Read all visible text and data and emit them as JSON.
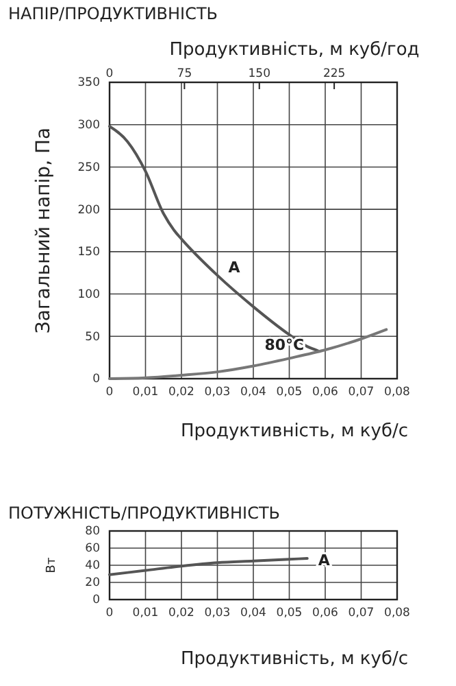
{
  "chart_data": [
    {
      "type": "line",
      "title": "НАПІР/ПРОДУКТИВНІСТЬ",
      "xlabel": "Продуктивність, м куб/с",
      "ylabel": "Загальний напір, Па",
      "x2label": "Продуктивність, м куб/год",
      "xlim": [
        0,
        0.08
      ],
      "xticks": [
        {
          "value": 0,
          "label": "0"
        },
        {
          "value": 0.01,
          "label": "0,01"
        },
        {
          "value": 0.02,
          "label": "0,02"
        },
        {
          "value": 0.03,
          "label": "0,03"
        },
        {
          "value": 0.04,
          "label": "0,04"
        },
        {
          "value": 0.05,
          "label": "0,05"
        },
        {
          "value": 0.06,
          "label": "0,06"
        },
        {
          "value": 0.07,
          "label": "0,07"
        },
        {
          "value": 0.08,
          "label": "0,08"
        }
      ],
      "x2lim": [
        0,
        288
      ],
      "x2ticks": [
        0,
        75,
        150,
        225
      ],
      "ylim": [
        0,
        350
      ],
      "yticks": [
        0,
        50,
        100,
        150,
        200,
        250,
        300,
        350
      ],
      "grid": true,
      "marker": "none",
      "line_style": "solid",
      "series": [
        {
          "name": "A",
          "color": "#555555",
          "x": [
            0,
            0.005,
            0.01,
            0.015,
            0.018,
            0.02,
            0.03,
            0.04,
            0.05,
            0.055,
            0.058
          ],
          "values": [
            298,
            280,
            245,
            195,
            175,
            165,
            122,
            85,
            52,
            38,
            33
          ]
        },
        {
          "name": "80°C",
          "color": "#777777",
          "x": [
            0,
            0.01,
            0.02,
            0.03,
            0.04,
            0.05,
            0.06,
            0.07,
            0.077
          ],
          "values": [
            0,
            1,
            4,
            8,
            15,
            24,
            34,
            47,
            58
          ]
        }
      ]
    },
    {
      "type": "line",
      "title": "ПОТУЖНІСТЬ/ПРОДУКТИВНІСТЬ",
      "xlabel": "Продуктивність, м куб/с",
      "ylabel": "Вт",
      "xlim": [
        0,
        0.08
      ],
      "xticks": [
        {
          "value": 0,
          "label": "0"
        },
        {
          "value": 0.01,
          "label": "0,01"
        },
        {
          "value": 0.02,
          "label": "0,02"
        },
        {
          "value": 0.03,
          "label": "0,03"
        },
        {
          "value": 0.04,
          "label": "0,04"
        },
        {
          "value": 0.05,
          "label": "0,05"
        },
        {
          "value": 0.06,
          "label": "0,06"
        },
        {
          "value": 0.07,
          "label": "0,07"
        },
        {
          "value": 0.08,
          "label": "0,08"
        }
      ],
      "ylim": [
        0,
        80
      ],
      "yticks": [
        0,
        20,
        40,
        60,
        80
      ],
      "grid": true,
      "marker": "none",
      "line_style": "solid",
      "series": [
        {
          "name": "A",
          "color": "#555555",
          "x": [
            0,
            0.01,
            0.02,
            0.03,
            0.04,
            0.05,
            0.055
          ],
          "values": [
            29,
            34,
            39,
            43,
            45,
            47,
            48
          ]
        }
      ]
    }
  ]
}
